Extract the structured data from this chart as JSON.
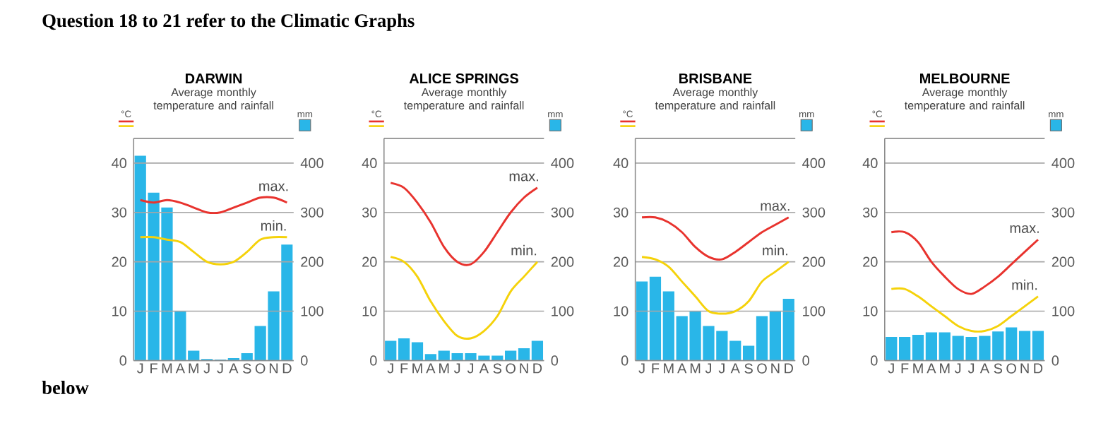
{
  "chart_data": [
    {
      "type": "bar",
      "title": "DARWIN",
      "subtitle": "Average monthly temperature and rainfall",
      "ylabel": "°C",
      "y2label": "mm",
      "annotations": [
        "Question 18 to 21 refer to the Climatic Graphs",
        "below"
      ],
      "categories": [
        "J",
        "F",
        "M",
        "A",
        "M",
        "J",
        "J",
        "A",
        "S",
        "O",
        "N",
        "D"
      ],
      "ylim": [
        0,
        45
      ],
      "yticks": [
        0,
        10,
        20,
        30,
        40
      ],
      "y2lim": [
        0,
        450
      ],
      "y2ticks": [
        0,
        100,
        200,
        300,
        400
      ],
      "grid": true,
      "series": [
        {
          "name": "max.",
          "type": "line",
          "color": "#e8332e",
          "values": [
            32.5,
            32,
            32.5,
            32,
            31,
            30,
            30,
            31,
            32,
            33,
            33,
            32
          ]
        },
        {
          "name": "min.",
          "type": "line",
          "color": "#f5d20a",
          "values": [
            25,
            25,
            24.5,
            24,
            22,
            20,
            19.5,
            20,
            22,
            24.5,
            25,
            25
          ]
        },
        {
          "axis": "y2",
          "color": "#29b6e8",
          "values": [
            415,
            340,
            310,
            100,
            20,
            3,
            2,
            5,
            15,
            70,
            140,
            235
          ]
        }
      ]
    },
    {
      "type": "bar",
      "title": "ALICE SPRINGS",
      "subtitle": "Average monthly temperature and rainfall",
      "ylabel": "°C",
      "y2label": "mm",
      "categories": [
        "J",
        "F",
        "M",
        "A",
        "M",
        "J",
        "J",
        "A",
        "S",
        "O",
        "N",
        "D"
      ],
      "ylim": [
        0,
        45
      ],
      "yticks": [
        0,
        10,
        20,
        30,
        40
      ],
      "y2lim": [
        0,
        450
      ],
      "y2ticks": [
        0,
        100,
        200,
        300,
        400
      ],
      "grid": true,
      "series": [
        {
          "name": "max.",
          "type": "line",
          "color": "#e8332e",
          "values": [
            36,
            35,
            32,
            28,
            23,
            20,
            19.5,
            22,
            26,
            30,
            33,
            35
          ]
        },
        {
          "name": "min.",
          "type": "line",
          "color": "#f5d20a",
          "values": [
            21,
            20,
            17,
            12,
            8,
            5,
            4.5,
            6,
            9,
            14,
            17,
            20
          ]
        },
        {
          "axis": "y2",
          "color": "#29b6e8",
          "values": [
            40,
            45,
            37,
            13,
            20,
            15,
            15,
            10,
            10,
            20,
            25,
            40
          ]
        }
      ]
    },
    {
      "type": "bar",
      "title": "BRISBANE",
      "subtitle": "Average monthly temperature and rainfall",
      "ylabel": "°C",
      "y2label": "mm",
      "categories": [
        "J",
        "F",
        "M",
        "A",
        "M",
        "J",
        "J",
        "A",
        "S",
        "O",
        "N",
        "D"
      ],
      "ylim": [
        0,
        45
      ],
      "yticks": [
        0,
        10,
        20,
        30,
        40
      ],
      "y2lim": [
        0,
        450
      ],
      "y2ticks": [
        0,
        100,
        200,
        300,
        400
      ],
      "grid": true,
      "series": [
        {
          "name": "max.",
          "type": "line",
          "color": "#e8332e",
          "values": [
            29,
            29,
            28,
            26,
            23,
            21,
            20.5,
            22,
            24,
            26,
            27.5,
            29
          ]
        },
        {
          "name": "min.",
          "type": "line",
          "color": "#f5d20a",
          "values": [
            21,
            20.5,
            19,
            16,
            13,
            10,
            9.5,
            10,
            12,
            16,
            18,
            20
          ]
        },
        {
          "axis": "y2",
          "color": "#29b6e8",
          "values": [
            160,
            170,
            140,
            90,
            100,
            70,
            60,
            40,
            30,
            90,
            100,
            125
          ]
        }
      ]
    },
    {
      "type": "bar",
      "title": "MELBOURNE",
      "subtitle": "Average monthly temperature and rainfall",
      "ylabel": "°C",
      "y2label": "mm",
      "categories": [
        "J",
        "F",
        "M",
        "A",
        "M",
        "J",
        "J",
        "A",
        "S",
        "O",
        "N",
        "D"
      ],
      "ylim": [
        0,
        45
      ],
      "yticks": [
        0,
        10,
        20,
        30,
        40
      ],
      "y2lim": [
        0,
        450
      ],
      "y2ticks": [
        0,
        100,
        200,
        300,
        400
      ],
      "grid": true,
      "series": [
        {
          "name": "max.",
          "type": "line",
          "color": "#e8332e",
          "values": [
            26,
            26,
            24,
            20,
            17,
            14.5,
            13.5,
            15,
            17,
            19.5,
            22,
            24.5
          ]
        },
        {
          "name": "min.",
          "type": "line",
          "color": "#f5d20a",
          "values": [
            14.5,
            14.5,
            13,
            11,
            9,
            7,
            6,
            6,
            7,
            9,
            11,
            13
          ]
        },
        {
          "axis": "y2",
          "color": "#29b6e8",
          "values": [
            48,
            48,
            52,
            57,
            57,
            50,
            48,
            50,
            59,
            67,
            60,
            60
          ]
        }
      ]
    }
  ]
}
